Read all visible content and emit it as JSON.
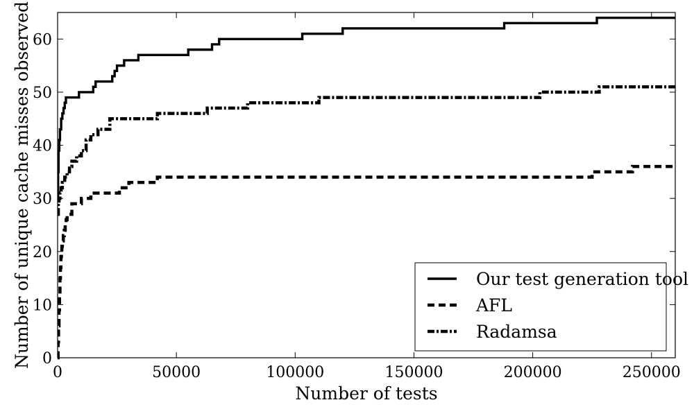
{
  "chart_data": {
    "type": "line",
    "xlabel": "Number of tests",
    "ylabel": "Number of unique cache misses observed",
    "xlim": [
      0,
      260000
    ],
    "ylim": [
      0,
      65
    ],
    "xticks": [
      0,
      50000,
      100000,
      150000,
      200000,
      250000
    ],
    "yticks": [
      0,
      10,
      20,
      30,
      40,
      50,
      60
    ],
    "grid": false,
    "legend_position": "bottom-right",
    "series": [
      {
        "name": "Our test generation tool",
        "style": "solid",
        "x": [
          0,
          200,
          400,
          700,
          1000,
          1500,
          2000,
          2500,
          3000,
          3500,
          9000,
          15000,
          16000,
          23000,
          24000,
          25000,
          28000,
          34000,
          55000,
          65000,
          68000,
          103000,
          120000,
          188000,
          227000,
          260000
        ],
        "y": [
          30,
          35,
          39,
          41,
          43,
          45,
          46,
          47,
          48,
          49,
          50,
          51,
          52,
          53,
          54,
          55,
          56,
          57,
          58,
          59,
          60,
          61,
          62,
          63,
          64,
          64
        ]
      },
      {
        "name": "AFL",
        "style": "dashed",
        "x": [
          0,
          200,
          400,
          600,
          800,
          1000,
          1200,
          1400,
          1600,
          1800,
          2000,
          2400,
          2800,
          3200,
          3600,
          4000,
          6000,
          10000,
          14000,
          20000,
          26000,
          30000,
          42000,
          222000,
          225000,
          242000,
          260000
        ],
        "y": [
          0,
          3,
          6,
          9,
          12,
          15,
          17,
          19,
          20,
          21,
          22,
          23,
          24,
          25,
          26,
          27,
          29,
          30,
          31,
          31,
          32,
          33,
          34,
          34,
          35,
          36,
          36
        ],
        "extra_x": [],
        "extra_y": []
      },
      {
        "name": "Radamsa",
        "style": "dashdot",
        "x": [
          0,
          300,
          600,
          1000,
          1500,
          2000,
          3000,
          4000,
          5000,
          6000,
          8000,
          10000,
          12000,
          14000,
          17000,
          22000,
          42000,
          63000,
          80000,
          110000,
          203000,
          228000,
          260000
        ],
        "y": [
          27,
          29,
          30,
          31,
          32,
          33,
          34,
          35,
          36,
          37,
          38,
          39,
          41,
          42,
          43,
          45,
          46,
          47,
          48,
          49,
          50,
          51,
          51
        ]
      }
    ]
  }
}
